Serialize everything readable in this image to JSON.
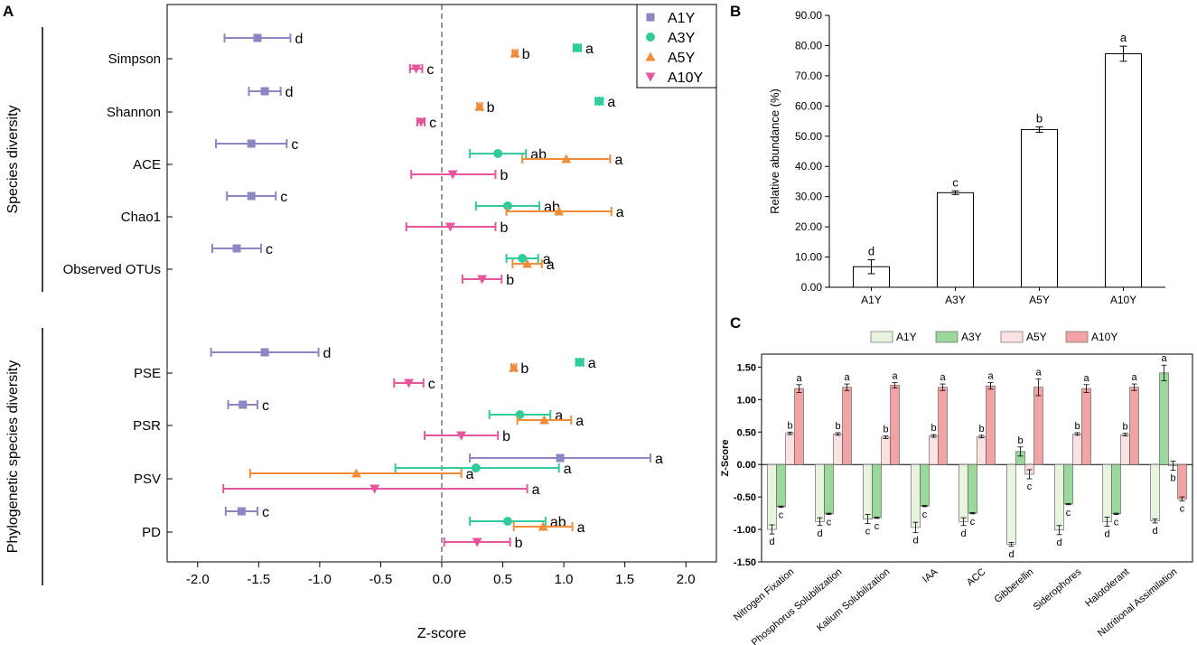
{
  "chart_data": [
    {
      "panel": "A",
      "type": "forest",
      "xlabel": "Z-score",
      "xlim": [
        -2.25,
        2.25
      ],
      "xticks": [
        "-2.0",
        "-1.5",
        "-1.0",
        "-0.5",
        "0.0",
        "0.5",
        "1.0",
        "1.5",
        "2.0"
      ],
      "reference_line": 0,
      "groups": [
        {
          "label": "Species diversity",
          "metrics": [
            "Simpson",
            "Shannon",
            "ACE",
            "Chao1",
            "Observed OTUs"
          ]
        },
        {
          "label": "Phylogenetic species diversity",
          "metrics": [
            "PSE",
            "PSR",
            "PSV",
            "PD"
          ]
        }
      ],
      "series": [
        {
          "name": "A1Y",
          "color": "#8b86c4",
          "marker": "square",
          "points": [
            {
              "metric": "Simpson",
              "mean": -1.51,
              "lo": -1.78,
              "hi": -1.24,
              "letter": "d"
            },
            {
              "metric": "Shannon",
              "mean": -1.45,
              "lo": -1.58,
              "hi": -1.32,
              "letter": "d"
            },
            {
              "metric": "ACE",
              "mean": -1.56,
              "lo": -1.85,
              "hi": -1.27,
              "letter": "c"
            },
            {
              "metric": "Chao1",
              "mean": -1.56,
              "lo": -1.76,
              "hi": -1.36,
              "letter": "c"
            },
            {
              "metric": "Observed OTUs",
              "mean": -1.68,
              "lo": -1.88,
              "hi": -1.48,
              "letter": "c"
            },
            {
              "metric": "PSE",
              "mean": -1.45,
              "lo": -1.89,
              "hi": -1.01,
              "letter": "d"
            },
            {
              "metric": "PSR",
              "mean": -1.63,
              "lo": -1.75,
              "hi": -1.51,
              "letter": "c"
            },
            {
              "metric": "PSV",
              "mean": 0.97,
              "lo": 0.23,
              "hi": 1.71,
              "letter": "a"
            },
            {
              "metric": "PD",
              "mean": -1.64,
              "lo": -1.77,
              "hi": -1.51,
              "letter": "c"
            }
          ]
        },
        {
          "name": "A3Y",
          "color": "#30cc9e",
          "marker": "circle",
          "points": [
            {
              "metric": "Simpson",
              "mean": 1.11,
              "lo": 1.08,
              "hi": 1.14,
              "letter": "a"
            },
            {
              "metric": "Shannon",
              "mean": 1.29,
              "lo": 1.26,
              "hi": 1.32,
              "letter": "a"
            },
            {
              "metric": "ACE",
              "mean": 0.46,
              "lo": 0.23,
              "hi": 0.69,
              "letter": "ab"
            },
            {
              "metric": "Chao1",
              "mean": 0.54,
              "lo": 0.28,
              "hi": 0.8,
              "letter": "ab"
            },
            {
              "metric": "Observed OTUs",
              "mean": 0.66,
              "lo": 0.53,
              "hi": 0.79,
              "letter": "a"
            },
            {
              "metric": "PSE",
              "mean": 1.13,
              "lo": 1.1,
              "hi": 1.16,
              "letter": "a"
            },
            {
              "metric": "PSR",
              "mean": 0.64,
              "lo": 0.39,
              "hi": 0.89,
              "letter": "a"
            },
            {
              "metric": "PSV",
              "mean": 0.28,
              "lo": -0.38,
              "hi": 0.96,
              "letter": "a"
            },
            {
              "metric": "PD",
              "mean": 0.54,
              "lo": 0.23,
              "hi": 0.85,
              "letter": "ab"
            }
          ]
        },
        {
          "name": "A5Y",
          "color": "#f08c3a",
          "marker": "triangle",
          "points": [
            {
              "metric": "Simpson",
              "mean": 0.6,
              "lo": 0.58,
              "hi": 0.62,
              "letter": "b"
            },
            {
              "metric": "Shannon",
              "mean": 0.31,
              "lo": 0.29,
              "hi": 0.33,
              "letter": "b"
            },
            {
              "metric": "ACE",
              "mean": 1.02,
              "lo": 0.66,
              "hi": 1.38,
              "letter": "a"
            },
            {
              "metric": "Chao1",
              "mean": 0.96,
              "lo": 0.53,
              "hi": 1.39,
              "letter": "a"
            },
            {
              "metric": "Observed OTUs",
              "mean": 0.7,
              "lo": 0.58,
              "hi": 0.82,
              "letter": "a"
            },
            {
              "metric": "PSE",
              "mean": 0.59,
              "lo": 0.57,
              "hi": 0.61,
              "letter": "b"
            },
            {
              "metric": "PSR",
              "mean": 0.84,
              "lo": 0.62,
              "hi": 1.06,
              "letter": "a"
            },
            {
              "metric": "PSV",
              "mean": -0.7,
              "lo": -1.57,
              "hi": 0.16,
              "letter": "a"
            },
            {
              "metric": "PD",
              "mean": 0.83,
              "lo": 0.59,
              "hi": 1.07,
              "letter": "a"
            }
          ]
        },
        {
          "name": "A10Y",
          "color": "#e8559f",
          "marker": "triangle-down",
          "points": [
            {
              "metric": "Simpson",
              "mean": -0.21,
              "lo": -0.26,
              "hi": -0.16,
              "letter": "c"
            },
            {
              "metric": "Shannon",
              "mean": -0.17,
              "lo": -0.2,
              "hi": -0.14,
              "letter": "c"
            },
            {
              "metric": "ACE",
              "mean": 0.09,
              "lo": -0.25,
              "hi": 0.44,
              "letter": "b"
            },
            {
              "metric": "Chao1",
              "mean": 0.07,
              "lo": -0.29,
              "hi": 0.44,
              "letter": "b"
            },
            {
              "metric": "Observed OTUs",
              "mean": 0.33,
              "lo": 0.17,
              "hi": 0.49,
              "letter": "b"
            },
            {
              "metric": "PSE",
              "mean": -0.27,
              "lo": -0.39,
              "hi": -0.15,
              "letter": "c"
            },
            {
              "metric": "PSR",
              "mean": 0.16,
              "lo": -0.14,
              "hi": 0.46,
              "letter": "b"
            },
            {
              "metric": "PSV",
              "mean": -0.55,
              "lo": -1.79,
              "hi": 0.7,
              "letter": "a"
            },
            {
              "metric": "PD",
              "mean": 0.29,
              "lo": 0.02,
              "hi": 0.56,
              "letter": "b"
            }
          ]
        }
      ]
    },
    {
      "panel": "B",
      "type": "bar",
      "ylabel": "Relative abundance (%)",
      "ylim": [
        0,
        90
      ],
      "yticks": [
        "0.00",
        "10.00",
        "20.00",
        "30.00",
        "40.00",
        "50.00",
        "60.00",
        "70.00",
        "80.00",
        "90.00"
      ],
      "categories": [
        "A1Y",
        "A3Y",
        "A5Y",
        "A10Y"
      ],
      "values": [
        6.8,
        31.3,
        52.2,
        77.3
      ],
      "errors": [
        2.3,
        0.6,
        0.9,
        2.5
      ],
      "letters": [
        "d",
        "c",
        "b",
        "a"
      ]
    },
    {
      "panel": "C",
      "type": "bar",
      "ylabel": "Z-Score",
      "ylim": [
        -1.5,
        1.7
      ],
      "yticks": [
        "-1.50",
        "-1.00",
        "-0.50",
        "0.00",
        "0.50",
        "1.00",
        "1.50"
      ],
      "categories": [
        "Nitrogen Fixation",
        "Phosphorus Solubilization",
        "Kalium Solubilization",
        "IAA",
        "ACC",
        "Gibberellin",
        "Siderophores",
        "Halotolerant",
        "Nutritional Assimilation"
      ],
      "series": [
        {
          "name": "A1Y",
          "fill": "#e8f4de",
          "values": [
            -1.0,
            -0.88,
            -0.84,
            -0.97,
            -0.88,
            -1.23,
            -1.01,
            -0.88,
            -0.87
          ],
          "errors": [
            0.07,
            0.06,
            0.07,
            0.08,
            0.06,
            0.03,
            0.07,
            0.07,
            0.03
          ],
          "letters": [
            "d",
            "d",
            "c",
            "d",
            "d",
            "d",
            "d",
            "d",
            "d"
          ]
        },
        {
          "name": "A3Y",
          "fill": "#9ad89b",
          "values": [
            -0.65,
            -0.76,
            -0.82,
            -0.64,
            -0.75,
            0.2,
            -0.61,
            -0.76,
            1.41
          ],
          "errors": [
            0.01,
            0.01,
            0.01,
            0.01,
            0.01,
            0.07,
            0.01,
            0.01,
            0.12
          ],
          "letters": [
            "c",
            "c",
            "c",
            "c",
            "c",
            "b",
            "c",
            "c",
            "a"
          ]
        },
        {
          "name": "A5Y",
          "fill": "#fbe1e2",
          "values": [
            0.48,
            0.47,
            0.42,
            0.44,
            0.43,
            -0.15,
            0.47,
            0.46,
            -0.02
          ],
          "errors": [
            0.02,
            0.02,
            0.02,
            0.02,
            0.02,
            0.07,
            0.02,
            0.02,
            0.07
          ],
          "letters": [
            "b",
            "b",
            "b",
            "b",
            "b",
            "c",
            "b",
            "b",
            "b"
          ]
        },
        {
          "name": "A10Y",
          "fill": "#f2a3a6",
          "values": [
            1.17,
            1.19,
            1.22,
            1.19,
            1.21,
            1.19,
            1.17,
            1.19,
            -0.53
          ],
          "errors": [
            0.06,
            0.05,
            0.04,
            0.05,
            0.05,
            0.13,
            0.06,
            0.05,
            0.03
          ],
          "letters": [
            "a",
            "a",
            "a",
            "a",
            "a",
            "a",
            "a",
            "a",
            "c"
          ]
        }
      ]
    }
  ],
  "panel_labels": {
    "a": "A",
    "b": "B",
    "c": "C"
  }
}
